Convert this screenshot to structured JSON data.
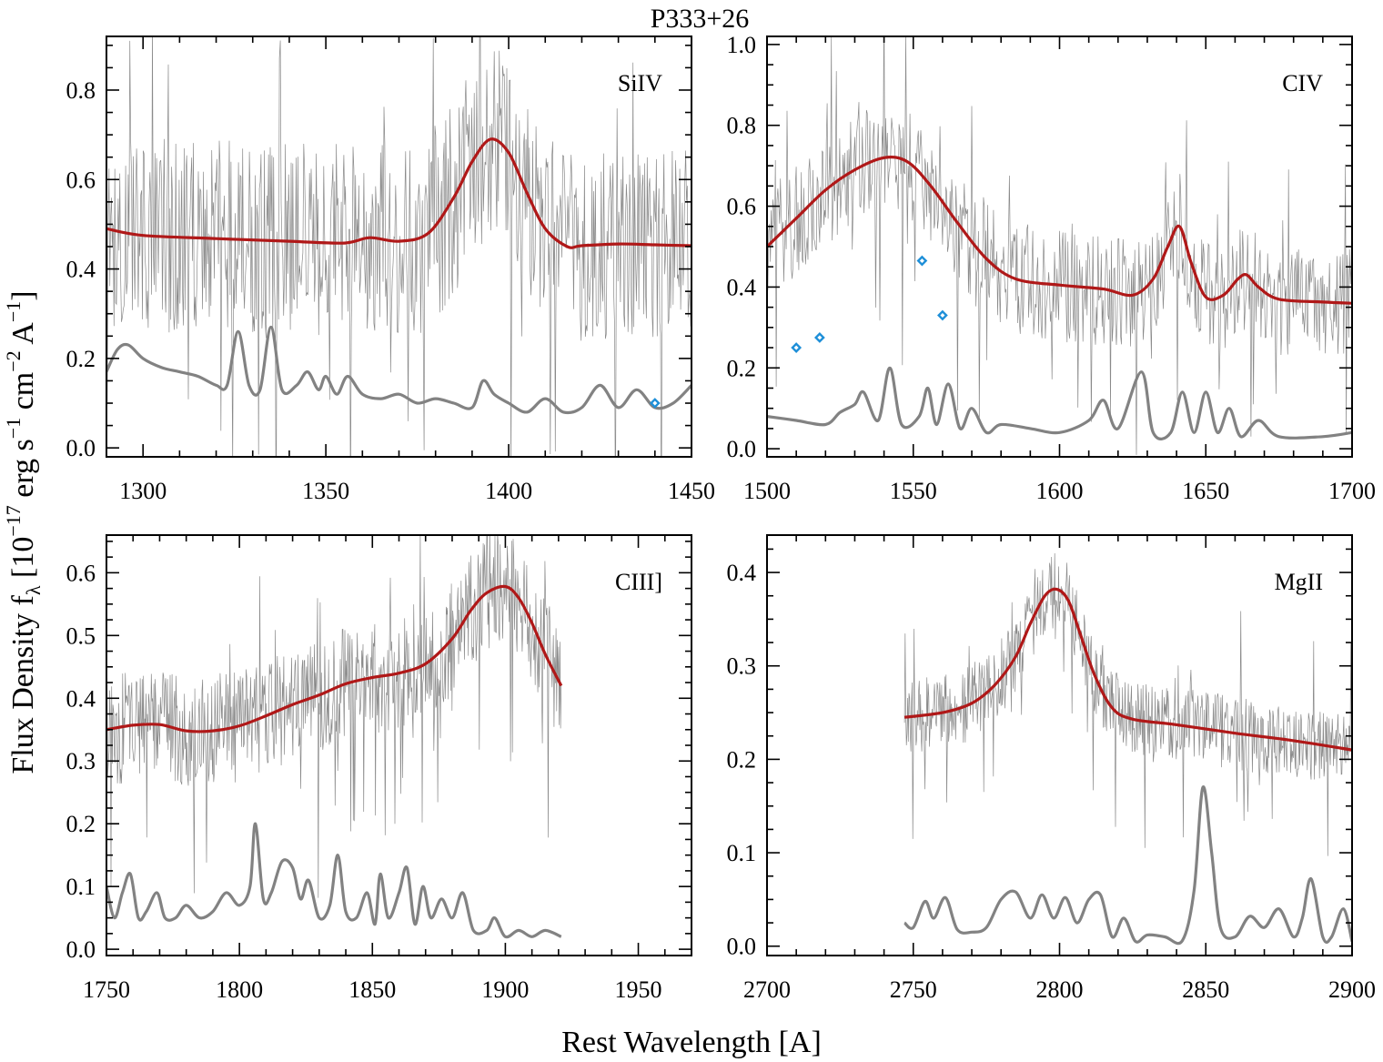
{
  "title": "P333+26",
  "xlabel": "Rest Wavelength [A]",
  "ylabel": "Flux Density f",
  "ylabel_sub": "λ",
  "ylabel_units": "10",
  "ylabel_exp": "−17",
  "ylabel_tail1": " erg s",
  "ylabel_exp2": "−1",
  "ylabel_tail2": " cm",
  "ylabel_exp3": "−2",
  "ylabel_tail3": " A",
  "ylabel_exp4": "−1",
  "ylabel_close": "]",
  "ylabel_open": "[",
  "colors": {
    "model": "#b01818",
    "noise": "#828282",
    "spectrum": "#8a8a8a",
    "masked_points": "#1e8fd8"
  },
  "chart_data": [
    {
      "type": "line",
      "label": "SiIV",
      "xlim": [
        1290,
        1450
      ],
      "ylim": [
        -0.02,
        0.92
      ],
      "xticks": [
        1300,
        1350,
        1400,
        1450
      ],
      "xtick_labels": [
        "1300",
        "1350",
        "1400",
        "1450"
      ],
      "yticks": [
        0.0,
        0.2,
        0.4,
        0.6,
        0.8
      ],
      "ytick_labels": [
        "0.0",
        "0.2",
        "0.4",
        "0.6",
        "0.8"
      ],
      "spectrum": {
        "x_range": [
          1290,
          1450
        ],
        "level": 0.47,
        "scatter": 0.22
      },
      "model": {
        "x": [
          1290,
          1300,
          1320,
          1340,
          1355,
          1362,
          1370,
          1378,
          1385,
          1390,
          1395,
          1400,
          1405,
          1410,
          1416,
          1420,
          1430,
          1440,
          1450
        ],
        "y": [
          0.49,
          0.475,
          0.468,
          0.462,
          0.458,
          0.47,
          0.462,
          0.48,
          0.56,
          0.64,
          0.69,
          0.66,
          0.57,
          0.49,
          0.45,
          0.452,
          0.456,
          0.454,
          0.452
        ]
      },
      "noise": {
        "x": [
          1290,
          1293,
          1296,
          1300,
          1305,
          1310,
          1315,
          1320,
          1323,
          1326,
          1329,
          1332,
          1335,
          1338,
          1342,
          1345,
          1348,
          1350,
          1353,
          1356,
          1360,
          1365,
          1370,
          1375,
          1380,
          1385,
          1390,
          1393,
          1396,
          1400,
          1405,
          1410,
          1415,
          1420,
          1425,
          1430,
          1435,
          1440,
          1445,
          1450
        ],
        "y": [
          0.17,
          0.22,
          0.23,
          0.2,
          0.18,
          0.17,
          0.16,
          0.14,
          0.14,
          0.26,
          0.14,
          0.13,
          0.27,
          0.13,
          0.14,
          0.17,
          0.13,
          0.16,
          0.12,
          0.16,
          0.12,
          0.11,
          0.12,
          0.1,
          0.11,
          0.1,
          0.09,
          0.15,
          0.12,
          0.1,
          0.08,
          0.11,
          0.08,
          0.09,
          0.14,
          0.09,
          0.13,
          0.09,
          0.1,
          0.14
        ]
      },
      "masked_points": {
        "x": [
          1440
        ],
        "y": [
          0.1
        ]
      }
    },
    {
      "type": "line",
      "label": "CIV",
      "xlim": [
        1500,
        1700
      ],
      "ylim": [
        -0.02,
        1.02
      ],
      "xticks": [
        1500,
        1550,
        1600,
        1650,
        1700
      ],
      "xtick_labels": [
        "1500",
        "1550",
        "1600",
        "1650",
        "1700"
      ],
      "yticks": [
        0.0,
        0.2,
        0.4,
        0.6,
        0.8,
        1.0
      ],
      "ytick_labels": [
        "0.0",
        "0.2",
        "0.4",
        "0.6",
        "0.8",
        "1.0"
      ],
      "spectrum": {
        "x_range": [
          1500,
          1700
        ],
        "level": 0.5,
        "scatter": 0.14
      },
      "model": {
        "x": [
          1500,
          1510,
          1520,
          1530,
          1540,
          1548,
          1556,
          1565,
          1575,
          1585,
          1600,
          1615,
          1625,
          1632,
          1637,
          1641,
          1645,
          1650,
          1656,
          1661,
          1664,
          1668,
          1675,
          1690,
          1700
        ],
        "y": [
          0.5,
          0.57,
          0.64,
          0.69,
          0.72,
          0.71,
          0.65,
          0.56,
          0.47,
          0.42,
          0.405,
          0.395,
          0.38,
          0.42,
          0.5,
          0.55,
          0.46,
          0.375,
          0.38,
          0.42,
          0.43,
          0.4,
          0.37,
          0.363,
          0.36
        ]
      },
      "noise": {
        "x": [
          1500,
          1510,
          1520,
          1525,
          1530,
          1533,
          1538,
          1542,
          1546,
          1552,
          1555,
          1558,
          1562,
          1566,
          1570,
          1575,
          1580,
          1590,
          1600,
          1610,
          1615,
          1620,
          1628,
          1632,
          1638,
          1642,
          1646,
          1650,
          1654,
          1658,
          1662,
          1668,
          1675,
          1690,
          1700
        ],
        "y": [
          0.08,
          0.07,
          0.06,
          0.09,
          0.11,
          0.14,
          0.07,
          0.2,
          0.06,
          0.08,
          0.15,
          0.06,
          0.16,
          0.05,
          0.1,
          0.04,
          0.06,
          0.05,
          0.04,
          0.07,
          0.12,
          0.05,
          0.19,
          0.04,
          0.04,
          0.14,
          0.04,
          0.14,
          0.04,
          0.1,
          0.03,
          0.07,
          0.03,
          0.03,
          0.04
        ]
      },
      "masked_points": {
        "x": [
          1510,
          1518,
          1553,
          1560
        ],
        "y": [
          0.25,
          0.275,
          0.465,
          0.33
        ]
      }
    },
    {
      "type": "line",
      "label": "CIII]",
      "xlim": [
        1750,
        1970
      ],
      "ylim": [
        -0.01,
        0.66
      ],
      "xticks": [
        1750,
        1800,
        1850,
        1900,
        1950
      ],
      "xtick_labels": [
        "1750",
        "1800",
        "1850",
        "1900",
        "1950"
      ],
      "yticks": [
        0.0,
        0.1,
        0.2,
        0.3,
        0.4,
        0.5,
        0.6
      ],
      "ytick_labels": [
        "0.0",
        "0.1",
        "0.2",
        "0.3",
        "0.4",
        "0.5",
        "0.6"
      ],
      "spectrum": {
        "x_range": [
          1750,
          1921
        ],
        "level": 0.42,
        "scatter": 0.09
      },
      "model": {
        "x": [
          1750,
          1760,
          1770,
          1780,
          1790,
          1800,
          1810,
          1820,
          1830,
          1840,
          1850,
          1860,
          1870,
          1880,
          1887,
          1893,
          1900,
          1905,
          1910,
          1915,
          1921
        ],
        "y": [
          0.35,
          0.357,
          0.358,
          0.348,
          0.348,
          0.356,
          0.372,
          0.39,
          0.405,
          0.423,
          0.433,
          0.44,
          0.455,
          0.495,
          0.54,
          0.568,
          0.578,
          0.56,
          0.52,
          0.47,
          0.42
        ]
      },
      "noise": {
        "x": [
          1750,
          1753,
          1756,
          1759,
          1762,
          1765,
          1769,
          1772,
          1776,
          1780,
          1785,
          1790,
          1795,
          1800,
          1804,
          1806,
          1809,
          1812,
          1816,
          1820,
          1823,
          1826,
          1830,
          1834,
          1837,
          1840,
          1844,
          1848,
          1851,
          1853,
          1856,
          1860,
          1863,
          1866,
          1869,
          1872,
          1876,
          1880,
          1884,
          1888,
          1893,
          1896,
          1900,
          1905,
          1910,
          1915,
          1921
        ],
        "y": [
          0.1,
          0.05,
          0.09,
          0.12,
          0.05,
          0.06,
          0.09,
          0.05,
          0.05,
          0.07,
          0.05,
          0.06,
          0.09,
          0.07,
          0.1,
          0.2,
          0.08,
          0.09,
          0.14,
          0.13,
          0.08,
          0.11,
          0.05,
          0.07,
          0.15,
          0.06,
          0.05,
          0.09,
          0.04,
          0.12,
          0.05,
          0.09,
          0.13,
          0.04,
          0.1,
          0.05,
          0.08,
          0.05,
          0.09,
          0.03,
          0.03,
          0.05,
          0.02,
          0.03,
          0.02,
          0.03,
          0.02
        ]
      },
      "masked_points": {
        "x": [],
        "y": []
      }
    },
    {
      "type": "line",
      "label": "MgII",
      "xlim": [
        2700,
        2900
      ],
      "ylim": [
        -0.01,
        0.44
      ],
      "xticks": [
        2700,
        2750,
        2800,
        2850,
        2900
      ],
      "xtick_labels": [
        "2700",
        "2750",
        "2800",
        "2850",
        "2900"
      ],
      "yticks": [
        0.0,
        0.1,
        0.2,
        0.3,
        0.4
      ],
      "ytick_labels": [
        "0.0",
        "0.1",
        "0.2",
        "0.3",
        "0.4"
      ],
      "spectrum": {
        "x_range": [
          2747,
          2900
        ],
        "level": 0.25,
        "scatter": 0.04
      },
      "model": {
        "x": [
          2747,
          2760,
          2770,
          2778,
          2785,
          2790,
          2795,
          2799,
          2803,
          2807,
          2812,
          2818,
          2825,
          2840,
          2860,
          2880,
          2900
        ],
        "y": [
          0.245,
          0.25,
          0.26,
          0.28,
          0.31,
          0.345,
          0.375,
          0.382,
          0.37,
          0.335,
          0.29,
          0.255,
          0.243,
          0.237,
          0.228,
          0.22,
          0.21
        ]
      },
      "noise": {
        "x": [
          2747,
          2750,
          2754,
          2757,
          2761,
          2765,
          2770,
          2775,
          2780,
          2785,
          2790,
          2794,
          2798,
          2802,
          2806,
          2810,
          2814,
          2818,
          2822,
          2826,
          2830,
          2836,
          2842,
          2846,
          2849,
          2852,
          2855,
          2860,
          2865,
          2870,
          2875,
          2880,
          2883,
          2886,
          2890,
          2893,
          2897,
          2900
        ],
        "y": [
          0.025,
          0.02,
          0.048,
          0.03,
          0.052,
          0.018,
          0.015,
          0.02,
          0.05,
          0.058,
          0.03,
          0.055,
          0.03,
          0.052,
          0.025,
          0.05,
          0.055,
          0.01,
          0.03,
          0.005,
          0.012,
          0.01,
          0.006,
          0.06,
          0.17,
          0.1,
          0.02,
          0.01,
          0.032,
          0.02,
          0.04,
          0.01,
          0.03,
          0.072,
          0.01,
          0.01,
          0.04,
          0.005
        ]
      },
      "masked_points": {
        "x": [],
        "y": []
      }
    }
  ]
}
